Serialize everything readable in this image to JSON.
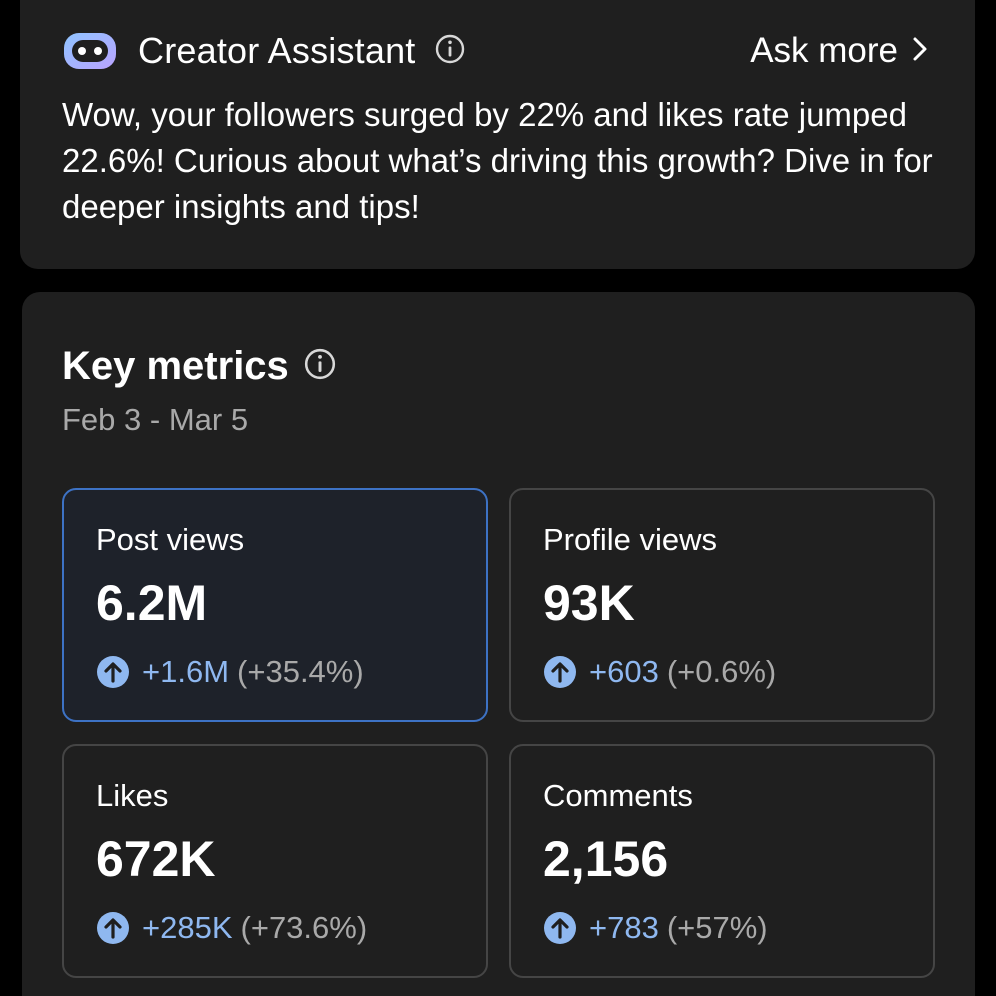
{
  "assistant": {
    "title": "Creator Assistant",
    "ask_more": "Ask more",
    "message": "Wow, your followers surged by 22% and likes rate jumped 22.6%! Curious about what’s driving this growth? Dive in for deeper insights and tips!",
    "icon": "bot-icon"
  },
  "metrics": {
    "title": "Key metrics",
    "date_range": "Feb 3 - Mar 5",
    "tiles": [
      {
        "label": "Post views",
        "value": "6.2M",
        "delta": "+1.6M",
        "pct": "(+35.4%)",
        "selected": true
      },
      {
        "label": "Profile views",
        "value": "93K",
        "delta": "+603",
        "pct": "(+0.6%)",
        "selected": false
      },
      {
        "label": "Likes",
        "value": "672K",
        "delta": "+285K",
        "pct": "(+73.6%)",
        "selected": false
      },
      {
        "label": "Comments",
        "value": "2,156",
        "delta": "+783",
        "pct": "(+57%)",
        "selected": false
      }
    ]
  },
  "colors": {
    "background": "#000000",
    "card": "#1f1f1f",
    "accent_blue": "#8fb8f0",
    "selected_border": "#3d72c4",
    "muted_text": "#a9a9a9"
  }
}
